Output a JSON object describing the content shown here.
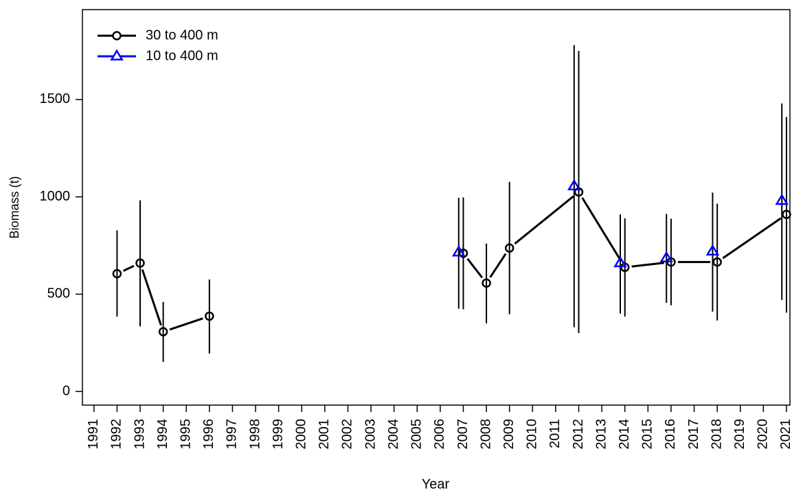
{
  "chart_data": {
    "type": "line",
    "x_label": "Year",
    "y_label": "Biomass (t)",
    "xlim": [
      1990.5,
      2021.15
    ],
    "xticks": [
      1991,
      1992,
      1993,
      1994,
      1995,
      1996,
      1997,
      1998,
      1999,
      2000,
      2001,
      2002,
      2003,
      2004,
      2005,
      2006,
      2007,
      2008,
      2009,
      2010,
      2011,
      2012,
      2013,
      2014,
      2015,
      2016,
      2017,
      2018,
      2019,
      2020,
      2021
    ],
    "ylim": [
      -70,
      1962
    ],
    "yticks": [
      0,
      500,
      1000,
      1500
    ],
    "legend": "top-left",
    "series": [
      {
        "name": "30 to 400 m",
        "color": "#000000",
        "marker": "circle",
        "line": true,
        "x": [
          1992,
          1993,
          1994,
          1996,
          null,
          2007,
          2008,
          2009,
          2012,
          2014,
          2016,
          2018,
          2021
        ],
        "values": [
          605,
          660,
          307,
          387,
          null,
          710,
          557,
          737,
          1025,
          638,
          665,
          665,
          910
        ],
        "lower": [
          385,
          335,
          152,
          195,
          null,
          422,
          350,
          397,
          300,
          385,
          443,
          365,
          405
        ],
        "upper": [
          828,
          982,
          460,
          575,
          null,
          997,
          760,
          1077,
          1750,
          890,
          888,
          965,
          1410
        ]
      },
      {
        "name": "10 to 400 m",
        "color": "#0000ff",
        "marker": "triangle",
        "line": false,
        "x": [
          2006.8,
          2011.8,
          2013.8,
          2015.8,
          2017.8,
          2020.8
        ],
        "values": [
          715,
          1055,
          660,
          685,
          720,
          980
        ],
        "lower": [
          425,
          330,
          400,
          455,
          410,
          470
        ],
        "upper": [
          995,
          1780,
          910,
          912,
          1022,
          1480
        ]
      }
    ]
  }
}
